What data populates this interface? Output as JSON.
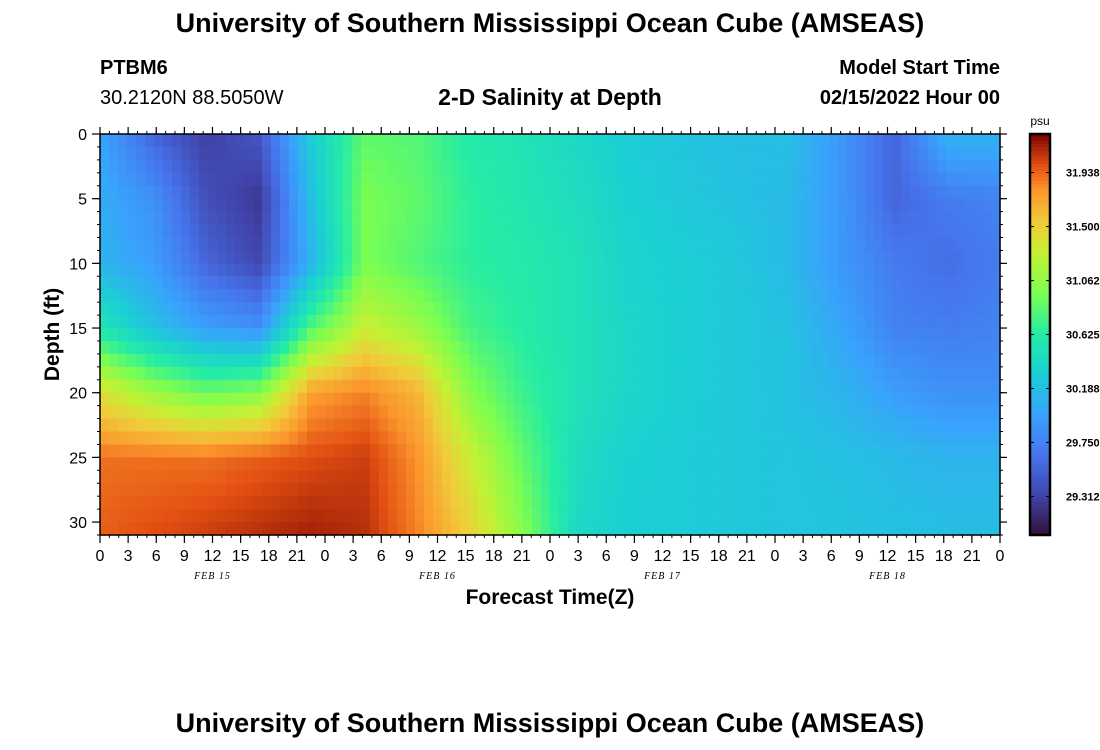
{
  "header": {
    "title": "University of Southern Mississippi Ocean Cube (AMSEAS)",
    "station": "PTBM6",
    "coords": "30.2120N  88.5050W",
    "subtitle": "2-D Salinity at Depth",
    "model_start_label": "Model Start Time",
    "model_start_time": "02/15/2022 Hour 00"
  },
  "footer": {
    "title": "University of Southern Mississippi Ocean Cube (AMSEAS)"
  },
  "chart_data": {
    "type": "heatmap",
    "xlabel": "Forecast Time(Z)",
    "ylabel": "Depth (ft)",
    "x_range_hours": [
      0,
      96
    ],
    "y_range_ft": [
      0,
      31
    ],
    "x_tick_labels": [
      "0",
      "3",
      "6",
      "9",
      "12",
      "15",
      "18",
      "21",
      "0",
      "3",
      "6",
      "9",
      "12",
      "15",
      "18",
      "21",
      "0",
      "3",
      "6",
      "9",
      "12",
      "15",
      "18",
      "21",
      "0",
      "3",
      "6",
      "9",
      "12",
      "15",
      "18",
      "21",
      "0"
    ],
    "y_ticks": [
      0,
      5,
      10,
      15,
      20,
      25,
      30
    ],
    "day_labels": [
      {
        "label": "FEB 15",
        "hour": 12
      },
      {
        "label": "FEB 16",
        "hour": 36
      },
      {
        "label": "FEB 17",
        "hour": 60
      },
      {
        "label": "FEB 18",
        "hour": 84
      }
    ],
    "colorbar": {
      "unit": "psu",
      "min": 29.0,
      "max": 32.25,
      "tick_labels": [
        "31.938",
        "31.500",
        "31.062",
        "30.625",
        "30.188",
        "29.750",
        "29.312"
      ],
      "tick_values": [
        31.938,
        31.5,
        31.062,
        30.625,
        30.188,
        29.75,
        29.312
      ]
    },
    "salinity_depths_ft": [
      0,
      5,
      10,
      15,
      20,
      25,
      31
    ],
    "salinity_rows": [
      [
        30.0,
        29.55,
        29.3,
        29.45,
        30.3,
        30.85,
        30.8,
        30.6,
        30.52,
        30.4,
        30.28,
        30.22,
        30.18,
        30.18,
        29.9,
        29.55,
        30.1,
        30.1
      ],
      [
        30.05,
        29.85,
        29.4,
        29.25,
        30.2,
        30.95,
        30.85,
        30.65,
        30.55,
        30.45,
        30.32,
        30.25,
        30.2,
        30.15,
        29.9,
        29.55,
        29.7,
        29.75
      ],
      [
        30.1,
        29.95,
        29.55,
        29.35,
        30.1,
        30.95,
        30.8,
        30.65,
        30.6,
        30.5,
        30.35,
        30.3,
        30.25,
        30.15,
        29.9,
        29.7,
        29.6,
        29.7
      ],
      [
        30.55,
        30.2,
        29.95,
        29.85,
        30.8,
        31.3,
        31.1,
        30.75,
        30.62,
        30.5,
        30.38,
        30.3,
        30.25,
        30.2,
        30.0,
        29.75,
        29.72,
        29.75
      ],
      [
        31.4,
        31.1,
        30.9,
        31.0,
        31.75,
        31.85,
        31.65,
        31.0,
        30.7,
        30.5,
        30.38,
        30.3,
        30.25,
        30.2,
        30.1,
        29.95,
        29.85,
        29.85
      ],
      [
        31.9,
        31.9,
        31.9,
        31.95,
        32.0,
        32.05,
        31.8,
        31.3,
        30.85,
        30.45,
        30.32,
        30.28,
        30.25,
        30.22,
        30.2,
        30.15,
        30.1,
        30.1
      ],
      [
        31.95,
        32.0,
        32.05,
        32.1,
        32.15,
        32.1,
        31.85,
        31.5,
        31.0,
        30.4,
        30.3,
        30.28,
        30.25,
        30.22,
        30.22,
        30.2,
        30.18,
        30.18
      ]
    ]
  }
}
